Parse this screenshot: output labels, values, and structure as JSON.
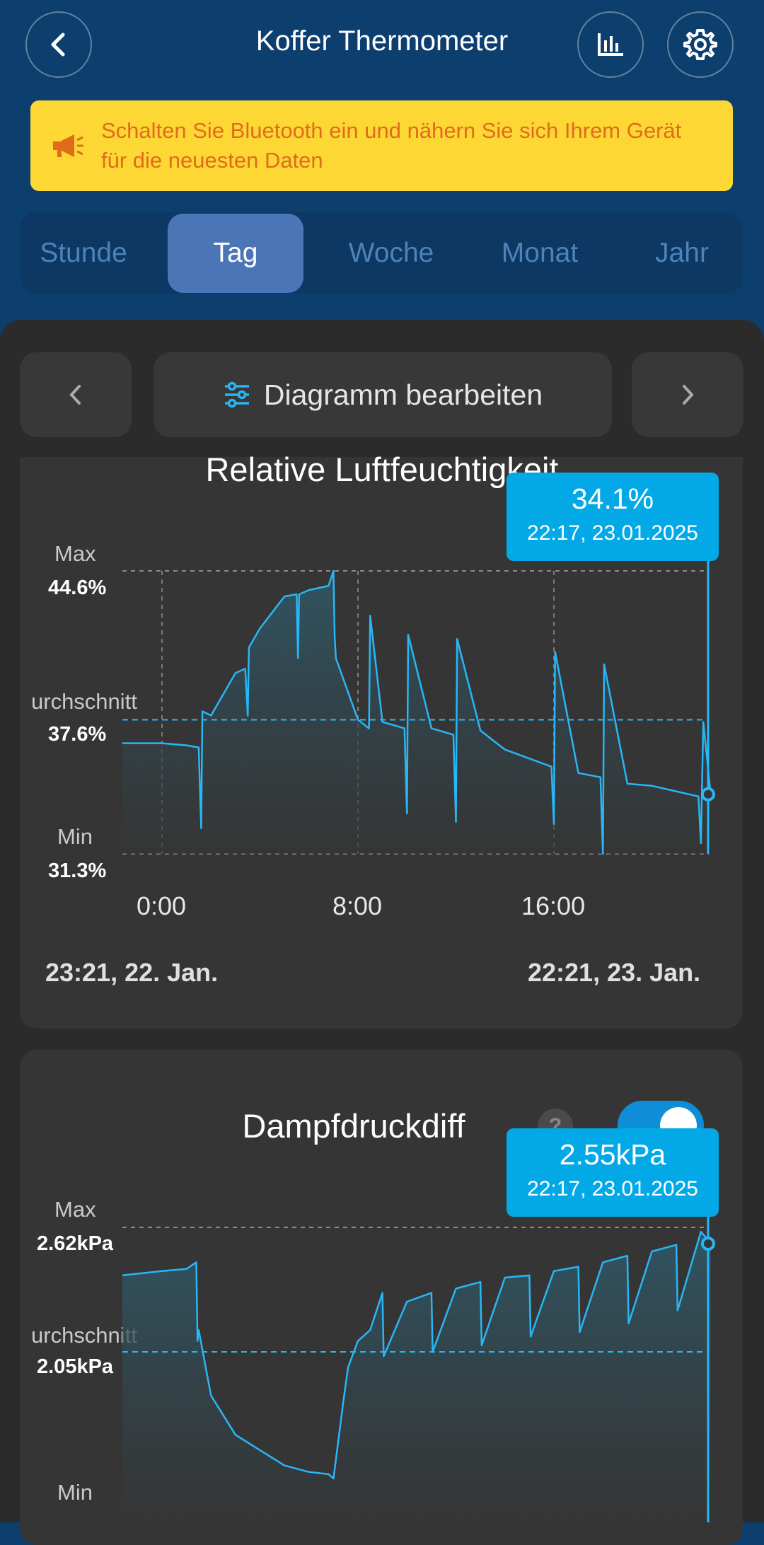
{
  "header": {
    "title": "Koffer Thermometer",
    "back_icon": "chevron-left-icon",
    "chart_icon": "bar-chart-icon",
    "settings_icon": "gear-icon"
  },
  "banner": {
    "icon": "megaphone-icon",
    "text": "Schalten Sie Bluetooth ein und nähern Sie sich Ihrem Gerät für die neuesten Daten",
    "color": "#fdd835"
  },
  "tabs": [
    {
      "label": "Stunde",
      "active": false
    },
    {
      "label": "Tag",
      "active": true
    },
    {
      "label": "Woche",
      "active": false
    },
    {
      "label": "Monat",
      "active": false
    },
    {
      "label": "Jahr",
      "active": false
    }
  ],
  "nav": {
    "edit_label": "Diagramm bearbeiten",
    "prev_icon": "chevron-left-icon",
    "next_icon": "chevron-right-icon",
    "edit_icon": "sliders-icon"
  },
  "charts": {
    "humidity": {
      "title": "Relative Luftfeuchtigkeit",
      "max_label": "Max",
      "max_value": "44.6%",
      "avg_label": "urchschnitt",
      "avg_value": "37.6%",
      "min_label": "Min",
      "min_value": "31.3%",
      "x_ticks": [
        "0:00",
        "8:00",
        "16:00"
      ],
      "range_start": "23:21,  22. Jan.",
      "range_end": "22:21,  23. Jan.",
      "tooltip_value": "34.1%",
      "tooltip_time": "22:17,  23.01.2025"
    },
    "vpd": {
      "title": "Dampfdruckdiff",
      "max_label": "Max",
      "max_value": "2.62kPa",
      "avg_label": "urchschnitt",
      "avg_value": "2.05kPa",
      "min_label": "Min",
      "tooltip_value": "2.55kPa",
      "tooltip_time": "22:17,  23.01.2025",
      "help_icon": "question-icon",
      "toggle_on": true
    }
  },
  "chart_data": [
    {
      "type": "area",
      "title": "Relative Luftfeuchtigkeit",
      "x_hours": [
        0,
        1,
        1.5,
        1.6,
        1.65,
        2,
        3,
        3.4,
        3.5,
        3.55,
        4,
        5,
        5.5,
        5.55,
        5.6,
        6,
        6.8,
        7,
        7.05,
        7.1,
        8,
        8.45,
        8.5,
        9,
        9.9,
        10.0,
        10.05,
        11,
        11.9,
        12.0,
        12.05,
        13,
        14,
        15.9,
        16.0,
        16.05,
        17,
        17.9,
        18.0,
        18.05,
        19,
        20,
        21.9,
        22,
        22.1,
        22.4
      ],
      "y_percent": [
        36.5,
        36.4,
        36.3,
        32.5,
        38,
        37.8,
        39.8,
        40,
        37.8,
        41,
        41.9,
        43.4,
        43.5,
        40.5,
        43.5,
        43.7,
        43.9,
        44.6,
        41.5,
        40.5,
        37.6,
        37.2,
        42.5,
        37.5,
        37.2,
        33.2,
        41.6,
        37.2,
        36.9,
        32.8,
        41.4,
        37.1,
        36.2,
        35.4,
        32.7,
        40.8,
        35.1,
        34.9,
        31.3,
        40.2,
        34.6,
        34.5,
        34.0,
        31.8,
        37.5,
        34.1
      ],
      "ylim": [
        31.3,
        44.6
      ],
      "max": 44.6,
      "average": 37.6,
      "min": 31.3,
      "x_tick_labels": [
        "0:00",
        "8:00",
        "16:00"
      ],
      "color": "#29b6f6"
    },
    {
      "type": "area",
      "title": "Dampfdruckdiff",
      "x_hours": [
        0,
        1,
        1.4,
        1.45,
        1.5,
        2,
        3,
        4,
        5,
        6,
        6.8,
        7,
        7.4,
        7.6,
        8,
        8.5,
        9,
        9.05,
        10,
        11,
        11.05,
        12,
        13,
        13.05,
        14,
        15,
        15.05,
        16,
        17,
        17.05,
        18,
        19,
        19.05,
        20,
        21,
        21.05,
        22,
        22.4
      ],
      "y_kpa": [
        2.42,
        2.43,
        2.46,
        2.1,
        2.15,
        1.85,
        1.67,
        1.6,
        1.53,
        1.5,
        1.49,
        1.47,
        1.82,
        1.98,
        2.1,
        2.15,
        2.32,
        2.03,
        2.28,
        2.32,
        2.05,
        2.34,
        2.37,
        2.08,
        2.39,
        2.4,
        2.12,
        2.42,
        2.44,
        2.14,
        2.46,
        2.49,
        2.18,
        2.51,
        2.54,
        2.24,
        2.6,
        2.55
      ],
      "max": 2.62,
      "average": 2.05,
      "color": "#29b6f6"
    }
  ]
}
